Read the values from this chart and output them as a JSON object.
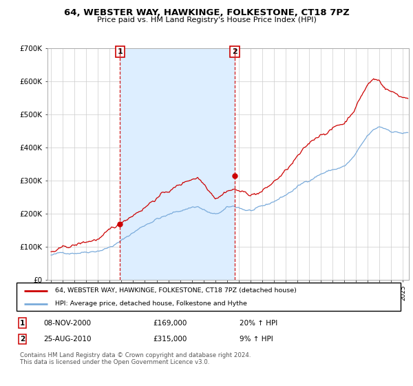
{
  "title": "64, WEBSTER WAY, HAWKINGE, FOLKESTONE, CT18 7PZ",
  "subtitle": "Price paid vs. HM Land Registry's House Price Index (HPI)",
  "legend_line1": "64, WEBSTER WAY, HAWKINGE, FOLKESTONE, CT18 7PZ (detached house)",
  "legend_line2": "HPI: Average price, detached house, Folkestone and Hythe",
  "footer": "Contains HM Land Registry data © Crown copyright and database right 2024.\nThis data is licensed under the Open Government Licence v3.0.",
  "sale1_date": "08-NOV-2000",
  "sale1_price": "£169,000",
  "sale1_hpi": "20% ↑ HPI",
  "sale2_date": "25-AUG-2010",
  "sale2_price": "£315,000",
  "sale2_hpi": "9% ↑ HPI",
  "ylim": [
    0,
    700000
  ],
  "yticks": [
    0,
    100000,
    200000,
    300000,
    400000,
    500000,
    600000,
    700000
  ],
  "ytick_labels": [
    "£0",
    "£100K",
    "£200K",
    "£300K",
    "£400K",
    "£500K",
    "£600K",
    "£700K"
  ],
  "sale1_x": 2000.87,
  "sale1_y": 169000,
  "sale2_x": 2010.65,
  "sale2_y": 315000,
  "red_color": "#cc0000",
  "blue_color": "#7aabdb",
  "fill_color": "#ddeeff",
  "vline_color": "#cc0000",
  "grid_color": "#cccccc",
  "xmin": 1994.7,
  "xmax": 2025.5
}
